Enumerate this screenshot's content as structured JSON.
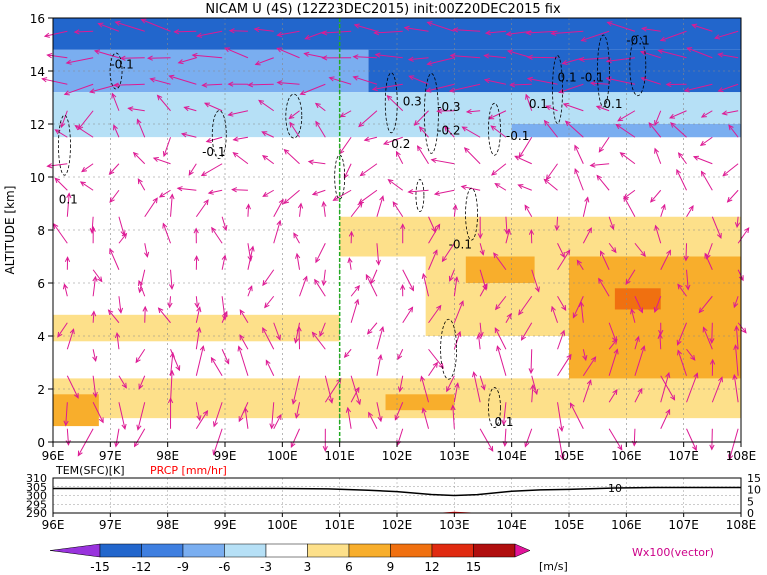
{
  "chart_data": [
    {
      "type": "heatmap",
      "title": "NICAM  U  (4S)  (12Z23DEC2015)  init:00Z20DEC2015  fix",
      "ylabel": "ALTITUDE [km]",
      "x": {
        "range": [
          96,
          108
        ],
        "ticks": [
          "96E",
          "97E",
          "98E",
          "99E",
          "100E",
          "101E",
          "102E",
          "103E",
          "104E",
          "105E",
          "106E",
          "107E",
          "108E"
        ]
      },
      "y": {
        "range": [
          0,
          16
        ],
        "ticks": [
          "0",
          "2",
          "4",
          "6",
          "8",
          "10",
          "12",
          "14",
          "16"
        ]
      },
      "grid": true,
      "reference_line": {
        "x": 101,
        "color": "#22aa22"
      },
      "layers": [
        {
          "x0": 96,
          "x1": 108,
          "y0": 14.8,
          "y1": 16,
          "value": -15
        },
        {
          "x0": 101.5,
          "x1": 108,
          "y0": 13.2,
          "y1": 14.8,
          "value": -15
        },
        {
          "x0": 96,
          "x1": 101.5,
          "y0": 13.2,
          "y1": 14.8,
          "value": -9
        },
        {
          "x0": 96,
          "x1": 108,
          "y0": 11.5,
          "y1": 13.2,
          "value": -6
        },
        {
          "x0": 104,
          "x1": 108,
          "y0": 10.5,
          "y1": 12,
          "value": -9
        },
        {
          "x0": 96,
          "x1": 108,
          "y0": 9.2,
          "y1": 11.5,
          "value": -3
        },
        {
          "x0": 101,
          "x1": 108,
          "y0": 7.0,
          "y1": 8.5,
          "value": 3
        },
        {
          "x0": 102.5,
          "x1": 108,
          "y0": 4.0,
          "y1": 7.0,
          "value": 3
        },
        {
          "x0": 105,
          "x1": 108,
          "y0": 2.0,
          "y1": 7.0,
          "value": 6
        },
        {
          "x0": 103.2,
          "x1": 104.4,
          "y0": 6.0,
          "y1": 7.0,
          "value": 6
        },
        {
          "x0": 105.8,
          "x1": 106.6,
          "y0": 5.0,
          "y1": 5.8,
          "value": 9
        },
        {
          "x0": 96,
          "x1": 101,
          "y0": 3.8,
          "y1": 4.8,
          "value": 3
        },
        {
          "x0": 96,
          "x1": 108,
          "y0": 0.9,
          "y1": 2.4,
          "value": 3
        },
        {
          "x0": 101.8,
          "x1": 103,
          "y0": 1.2,
          "y1": 1.8,
          "value": 6
        },
        {
          "x0": 96,
          "x1": 96.8,
          "y0": 0.6,
          "y1": 1.8,
          "value": 6
        }
      ],
      "contour_labels": [
        {
          "text": "-0.1",
          "x": 97.0,
          "y": 14.1
        },
        {
          "text": "-0.1",
          "x": 98.6,
          "y": 10.8
        },
        {
          "text": "0.1",
          "x": 96.1,
          "y": 9.0
        },
        {
          "text": "0.3",
          "x": 102.1,
          "y": 12.7
        },
        {
          "text": "-0.3",
          "x": 102.7,
          "y": 12.5
        },
        {
          "text": "-0.2",
          "x": 102.7,
          "y": 11.6
        },
        {
          "text": "0.2",
          "x": 101.9,
          "y": 11.1
        },
        {
          "text": "-0.1",
          "x": 103.9,
          "y": 11.4
        },
        {
          "text": "0.1",
          "x": 104.3,
          "y": 12.6
        },
        {
          "text": "0.1",
          "x": 105.6,
          "y": 12.6
        },
        {
          "text": "-0.1",
          "x": 105.2,
          "y": 13.6
        },
        {
          "text": "0.1",
          "x": 104.8,
          "y": 13.6
        },
        {
          "text": "-0.1",
          "x": 106.0,
          "y": 15.0
        },
        {
          "text": "-0.1",
          "x": 102.9,
          "y": 7.3
        },
        {
          "text": "0.1",
          "x": 103.7,
          "y": 0.6
        }
      ]
    },
    {
      "type": "line",
      "x": {
        "range": [
          96,
          108
        ],
        "ticks": [
          "96E",
          "97E",
          "98E",
          "99E",
          "100E",
          "101E",
          "102E",
          "103E",
          "104E",
          "105E",
          "106E",
          "107E",
          "108E"
        ]
      },
      "left_axis": {
        "label": "TEM(SFC)[K]",
        "range": [
          290,
          310
        ],
        "ticks": [
          "310",
          "305",
          "300",
          "295",
          "290"
        ]
      },
      "right_axis": {
        "label": "PRCP [mm/hr]",
        "range": [
          0,
          15
        ],
        "ticks": [
          "15",
          "10",
          "5",
          "0"
        ]
      },
      "annotation": "10",
      "series": [
        {
          "axis": "left",
          "color": "#000000",
          "x": [
            96,
            97,
            98,
            99,
            100,
            100.8,
            101.5,
            102,
            102.6,
            103,
            103.4,
            104,
            104.5,
            105,
            105.8,
            106.5,
            107,
            108
          ],
          "y": [
            304,
            304,
            304,
            304,
            304,
            303.8,
            303,
            302.2,
            300.6,
            300,
            300.5,
            302.4,
            303.2,
            303.5,
            304.3,
            304.6,
            304.6,
            304.6
          ]
        },
        {
          "axis": "right",
          "color": "#ff0000",
          "x": [
            96,
            102.8,
            103.0,
            103.3,
            108
          ],
          "y": [
            0,
            0,
            0.3,
            0,
            0
          ]
        }
      ]
    }
  ],
  "colorbar": {
    "ticks": [
      "-15",
      "-12",
      "-9",
      "-6",
      "-3",
      "3",
      "6",
      "9",
      "12",
      "15"
    ],
    "unit": "[m/s]",
    "colors": [
      "#9933dd",
      "#2266cc",
      "#3f7fe0",
      "#7aaef0",
      "#b6e0f6",
      "#ffffff",
      "#fde08a",
      "#f8ae2c",
      "#f07010",
      "#e02a10",
      "#b00e0e",
      "#e2149a"
    ]
  },
  "vector_label": "Wx100(vector)",
  "colors": {
    "vector": "#dd1a94",
    "precip": "#ff0000",
    "reference": "#22aa22"
  }
}
